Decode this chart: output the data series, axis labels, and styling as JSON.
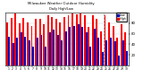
{
  "title": "Milwaukee Weather Outdoor Humidity",
  "subtitle": "Daily High/Low",
  "bar_high_color": "#ff0000",
  "bar_low_color": "#0000bb",
  "background_color": "#ffffff",
  "grid_color": "#cccccc",
  "highs": [
    82,
    90,
    98,
    80,
    90,
    82,
    75,
    88,
    88,
    78,
    95,
    92,
    88,
    82,
    92,
    95,
    98,
    96,
    98,
    95,
    72,
    95,
    88,
    65,
    95,
    82,
    75,
    52,
    78,
    62
  ],
  "lows": [
    55,
    42,
    52,
    62,
    55,
    48,
    35,
    52,
    58,
    35,
    62,
    68,
    58,
    48,
    65,
    72,
    75,
    78,
    72,
    62,
    35,
    70,
    52,
    25,
    48,
    52,
    45,
    18,
    48,
    28
  ],
  "xlabels": [
    "1",
    "2",
    "3",
    "4",
    "5",
    "6",
    "7",
    "8",
    "9",
    "10",
    "11",
    "12",
    "13",
    "14",
    "15",
    "16",
    "17",
    "18",
    "19",
    "20",
    "21",
    "22",
    "23",
    "24",
    "25",
    "26",
    "27",
    "28",
    "29",
    "30"
  ],
  "dashed_line_x": 23.5,
  "ylim": [
    0,
    100
  ],
  "yticks": [
    20,
    40,
    60,
    80
  ],
  "legend_high": "High",
  "legend_low": "Low"
}
